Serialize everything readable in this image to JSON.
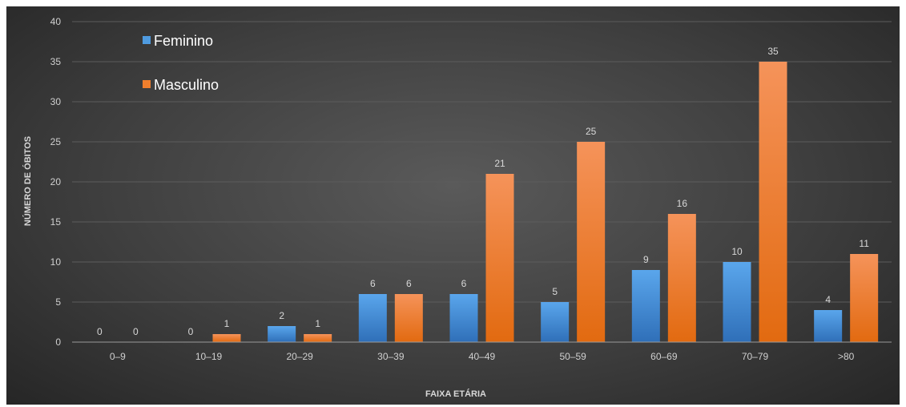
{
  "chart_data": {
    "type": "bar",
    "title": "",
    "xlabel": "FAIXA ETÁRIA",
    "ylabel": "NÚMERO DE ÓBITOS",
    "ylim": [
      0,
      40
    ],
    "ytick_step": 5,
    "grid": true,
    "legend_position": "top-left",
    "categories": [
      "0–9",
      "10–19",
      "20–29",
      "30–39",
      "40–49",
      "50–59",
      "60–69",
      "70–79",
      ">80"
    ],
    "series": [
      {
        "name": "Feminino",
        "color": "#4f9be0",
        "values": [
          0,
          0,
          2,
          6,
          6,
          5,
          9,
          10,
          4
        ]
      },
      {
        "name": "Masculino",
        "color": "#f07f2d",
        "values": [
          0,
          1,
          1,
          6,
          21,
          25,
          16,
          35,
          11
        ]
      }
    ]
  }
}
